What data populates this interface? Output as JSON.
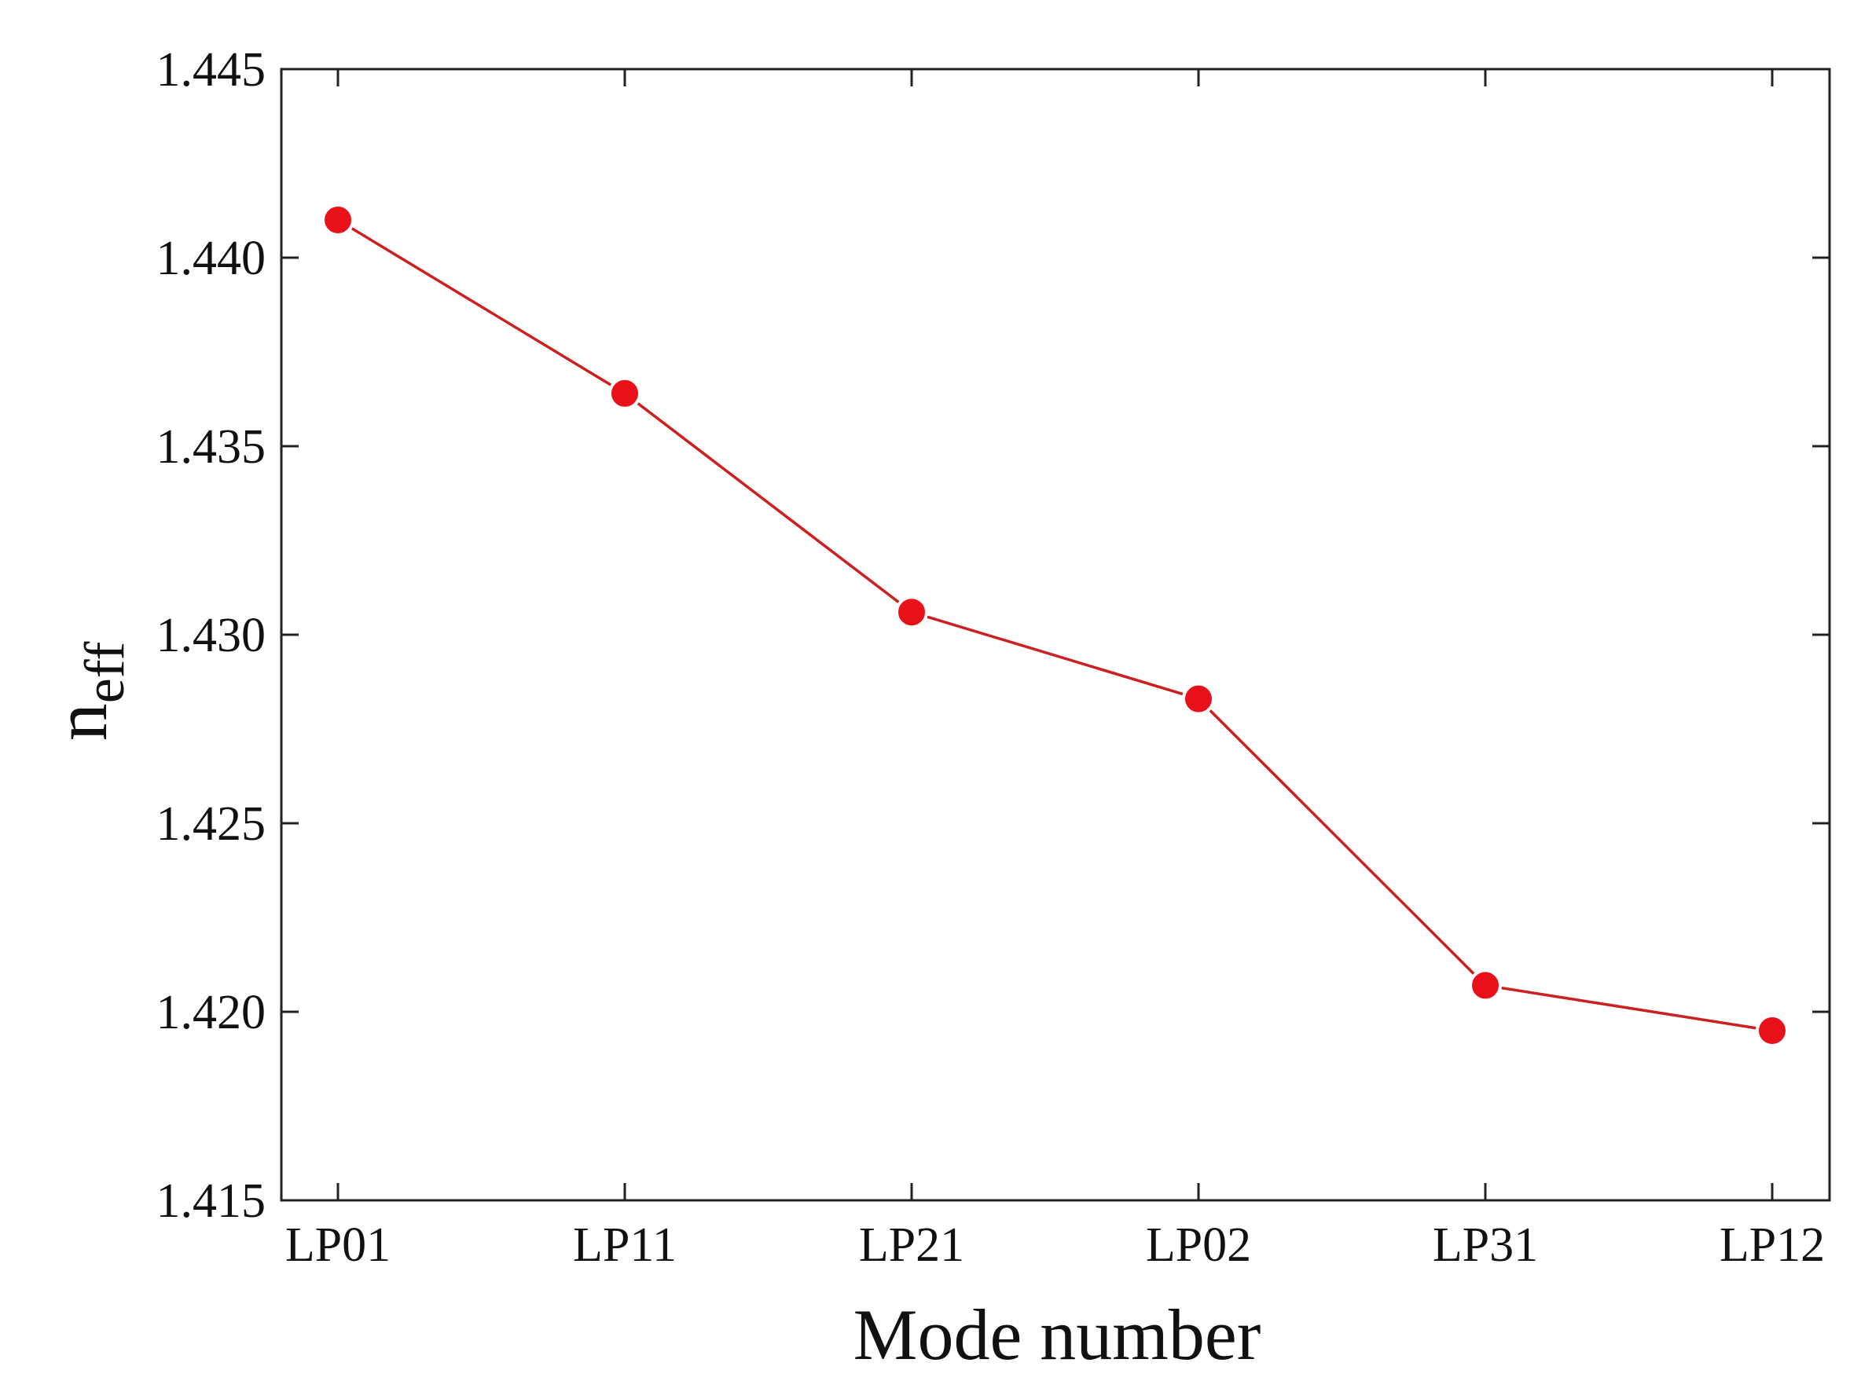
{
  "chart_data": {
    "type": "line",
    "categories": [
      "LP01",
      "LP11",
      "LP21",
      "LP02",
      "LP31",
      "LP12"
    ],
    "series": [
      {
        "values": [
          1.441,
          1.4364,
          1.4306,
          1.4283,
          1.4207,
          1.4195
        ],
        "color": "#e8111a",
        "line_color": "#cc1f1f",
        "marker": "circle"
      }
    ],
    "xlabel": "Mode number",
    "ylabel": {
      "main": "n",
      "sub": "eff"
    },
    "ylim": [
      1.415,
      1.445
    ],
    "yticks": [
      1.415,
      1.42,
      1.425,
      1.43,
      1.435,
      1.44,
      1.445
    ],
    "ytick_labels": [
      "1.415",
      "1.420",
      "1.425",
      "1.430",
      "1.435",
      "1.440",
      "1.445"
    ],
    "grid": false,
    "legend": "none"
  }
}
